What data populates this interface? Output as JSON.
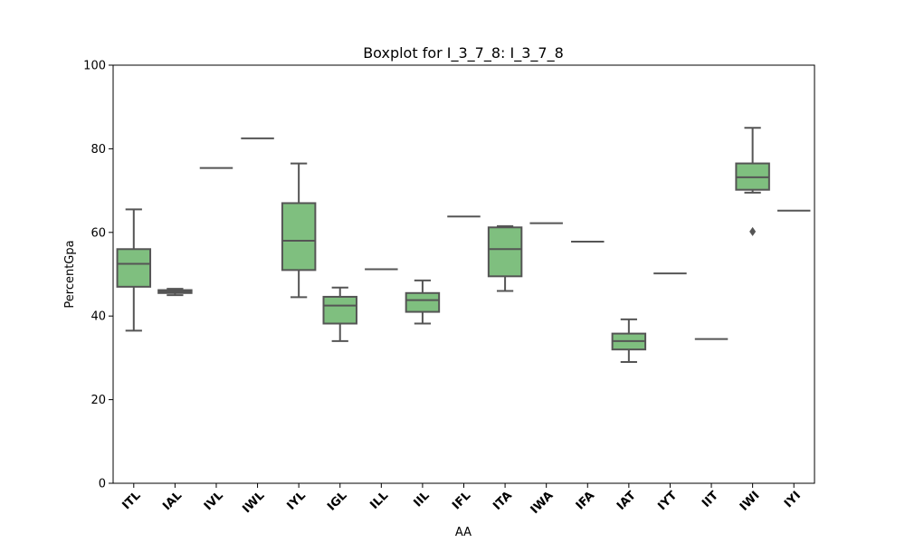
{
  "chart_data": {
    "type": "box",
    "title": "Boxplot for I_3_7_8: I_3_7_8",
    "xlabel": "AA",
    "ylabel": "PercentGpa",
    "ylim": [
      0,
      100
    ],
    "yticks": [
      0,
      20,
      40,
      60,
      80,
      100
    ],
    "grid": false,
    "box_color": "#7fbf7f",
    "line_color": "#555555",
    "categories": [
      "ITL",
      "IAL",
      "IVL",
      "IWL",
      "IYL",
      "IGL",
      "ILL",
      "IIL",
      "IFL",
      "ITA",
      "IWA",
      "IFA",
      "IAT",
      "IYT",
      "IIT",
      "IWI",
      "IYI"
    ],
    "boxes": [
      {
        "whislo": 36.5,
        "q1": 47.0,
        "med": 52.5,
        "q3": 56.0,
        "whishi": 65.5,
        "fliers": []
      },
      {
        "whislo": 45.0,
        "q1": 45.5,
        "med": 45.8,
        "q3": 46.2,
        "whishi": 46.5,
        "fliers": []
      },
      {
        "whislo": 75.4,
        "q1": 75.4,
        "med": 75.4,
        "q3": 75.4,
        "whishi": 75.4,
        "fliers": []
      },
      {
        "whislo": 82.5,
        "q1": 82.5,
        "med": 82.5,
        "q3": 82.5,
        "whishi": 82.5,
        "fliers": []
      },
      {
        "whislo": 44.5,
        "q1": 51.0,
        "med": 58.0,
        "q3": 67.0,
        "whishi": 76.5,
        "fliers": []
      },
      {
        "whislo": 34.0,
        "q1": 38.2,
        "med": 42.5,
        "q3": 44.6,
        "whishi": 46.8,
        "fliers": []
      },
      {
        "whislo": 51.2,
        "q1": 51.2,
        "med": 51.2,
        "q3": 51.2,
        "whishi": 51.2,
        "fliers": []
      },
      {
        "whislo": 38.2,
        "q1": 41.0,
        "med": 43.8,
        "q3": 45.5,
        "whishi": 48.5,
        "fliers": []
      },
      {
        "whislo": 63.8,
        "q1": 63.8,
        "med": 63.8,
        "q3": 63.8,
        "whishi": 63.8,
        "fliers": []
      },
      {
        "whislo": 46.0,
        "q1": 49.5,
        "med": 56.0,
        "q3": 61.2,
        "whishi": 61.5,
        "fliers": []
      },
      {
        "whislo": 62.2,
        "q1": 62.2,
        "med": 62.2,
        "q3": 62.2,
        "whishi": 62.2,
        "fliers": []
      },
      {
        "whislo": 57.8,
        "q1": 57.8,
        "med": 57.8,
        "q3": 57.8,
        "whishi": 57.8,
        "fliers": []
      },
      {
        "whislo": 29.0,
        "q1": 32.0,
        "med": 34.0,
        "q3": 35.8,
        "whishi": 39.2,
        "fliers": []
      },
      {
        "whislo": 50.2,
        "q1": 50.2,
        "med": 50.2,
        "q3": 50.2,
        "whishi": 50.2,
        "fliers": []
      },
      {
        "whislo": 34.5,
        "q1": 34.5,
        "med": 34.5,
        "q3": 34.5,
        "whishi": 34.5,
        "fliers": []
      },
      {
        "whislo": 69.5,
        "q1": 70.2,
        "med": 73.2,
        "q3": 76.5,
        "whishi": 85.0,
        "fliers": [
          60.2
        ]
      },
      {
        "whislo": 65.2,
        "q1": 65.2,
        "med": 65.2,
        "q3": 65.2,
        "whishi": 65.2,
        "fliers": []
      }
    ]
  }
}
